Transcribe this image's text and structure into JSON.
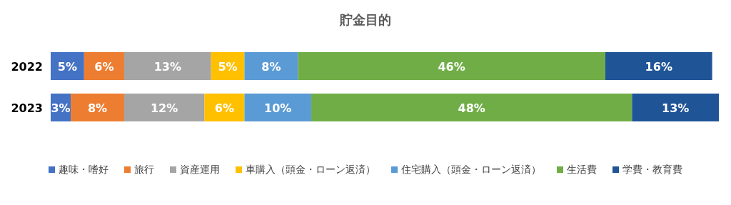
{
  "chart_data": {
    "type": "bar",
    "title": "貯金目的",
    "orientation": "horizontal",
    "stacked": true,
    "legend": "bottom",
    "xlim": [
      0,
      100
    ],
    "categories": [
      "2022",
      "2023"
    ],
    "series": [
      {
        "name": "趣味・嗜好",
        "color": "#4472c4",
        "values": [
          5,
          3
        ],
        "value_labels": [
          "5%",
          "3%"
        ]
      },
      {
        "name": "旅行",
        "color": "#ed7d31",
        "values": [
          6,
          8
        ],
        "value_labels": [
          "6%",
          "8%"
        ]
      },
      {
        "name": "資産運用",
        "color": "#a5a5a5",
        "values": [
          13,
          12
        ],
        "value_labels": [
          "13%",
          "12%"
        ]
      },
      {
        "name": "車購入（頭金・ローン返済）",
        "color": "#ffc000",
        "values": [
          5,
          6
        ],
        "value_labels": [
          "5%",
          "6%"
        ]
      },
      {
        "name": "住宅購入（頭金・ローン返済）",
        "color": "#5b9bd5",
        "values": [
          8,
          10
        ],
        "value_labels": [
          "8%",
          "10%"
        ]
      },
      {
        "name": "生活費",
        "color": "#70ad47",
        "values": [
          46,
          48
        ],
        "value_labels": [
          "46%",
          "48%"
        ]
      },
      {
        "name": "学費・教育費",
        "color": "#1f5597",
        "values": [
          16,
          13
        ],
        "value_labels": [
          "16%",
          "13%"
        ]
      }
    ]
  }
}
